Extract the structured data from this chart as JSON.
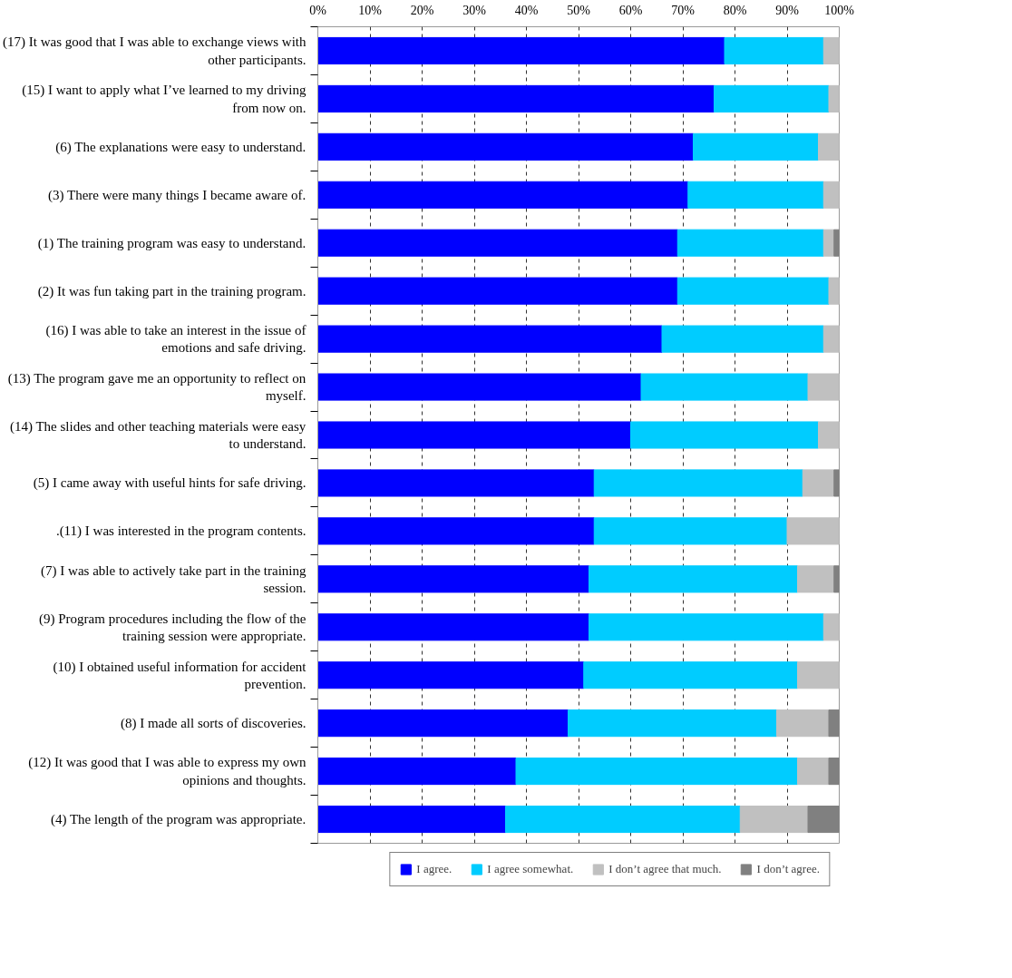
{
  "chart_data": {
    "type": "bar",
    "orientation": "horizontal",
    "stacked": true,
    "categories": [
      "(17) It was good that I was able to exchange views with other participants.",
      "(15) I want to apply what I’ve learned to my driving from now on.",
      "(6) The explanations were easy to understand.",
      "(3) There were many things I became aware of.",
      "(1) The training program was easy to understand.",
      "(2) It was fun taking part in the training program.",
      "(16) I was able to take an interest in the issue of emotions and safe driving.",
      "(13) The program gave me an opportunity to reflect on myself.",
      "(14) The slides and other teaching materials were easy to understand.",
      "(5) I came away with useful hints for safe driving.",
      ".(11) I was interested in the program contents.",
      "(7) I was able to actively take part in the training session.",
      "(9) Program procedures including the flow of the training session were appropriate.",
      "(10) I obtained useful information for accident prevention.",
      "(8) I made all sorts of discoveries.",
      "(12) It was good that I was able to express my own opinions and thoughts.",
      "(4) The length of the program was appropriate."
    ],
    "series": [
      {
        "name": "I agree.",
        "color": "#0000ff",
        "values": [
          78,
          76,
          72,
          71,
          69,
          69,
          66,
          62,
          60,
          53,
          53,
          52,
          52,
          51,
          48,
          38,
          36
        ]
      },
      {
        "name": "I agree somewhat.",
        "color": "#00ccff",
        "values": [
          19,
          22,
          24,
          26,
          28,
          29,
          31,
          32,
          36,
          40,
          37,
          40,
          45,
          41,
          40,
          54,
          45
        ]
      },
      {
        "name": "I don’t agree that much.",
        "color": "#c0c0c0",
        "values": [
          3,
          2,
          4,
          3,
          2,
          2,
          3,
          6,
          4,
          6,
          10,
          7,
          3,
          8,
          10,
          6,
          13
        ]
      },
      {
        "name": "I don’t agree.",
        "color": "#808080",
        "values": [
          null,
          null,
          null,
          null,
          1,
          null,
          null,
          null,
          null,
          1,
          null,
          1,
          null,
          null,
          2,
          2,
          6
        ]
      }
    ],
    "xlim": [
      0,
      100
    ],
    "xticks": [
      {
        "value": 0,
        "label": "0%"
      },
      {
        "value": 10,
        "label": "10%"
      },
      {
        "value": 20,
        "label": "20%"
      },
      {
        "value": 30,
        "label": "30%"
      },
      {
        "value": 40,
        "label": "40%"
      },
      {
        "value": 50,
        "label": "50%"
      },
      {
        "value": 60,
        "label": "60%"
      },
      {
        "value": 70,
        "label": "70%"
      },
      {
        "value": 80,
        "label": "80%"
      },
      {
        "value": 90,
        "label": "90%"
      },
      {
        "value": 100,
        "label": "100%"
      }
    ],
    "grid": "x",
    "legend": "bottom"
  }
}
